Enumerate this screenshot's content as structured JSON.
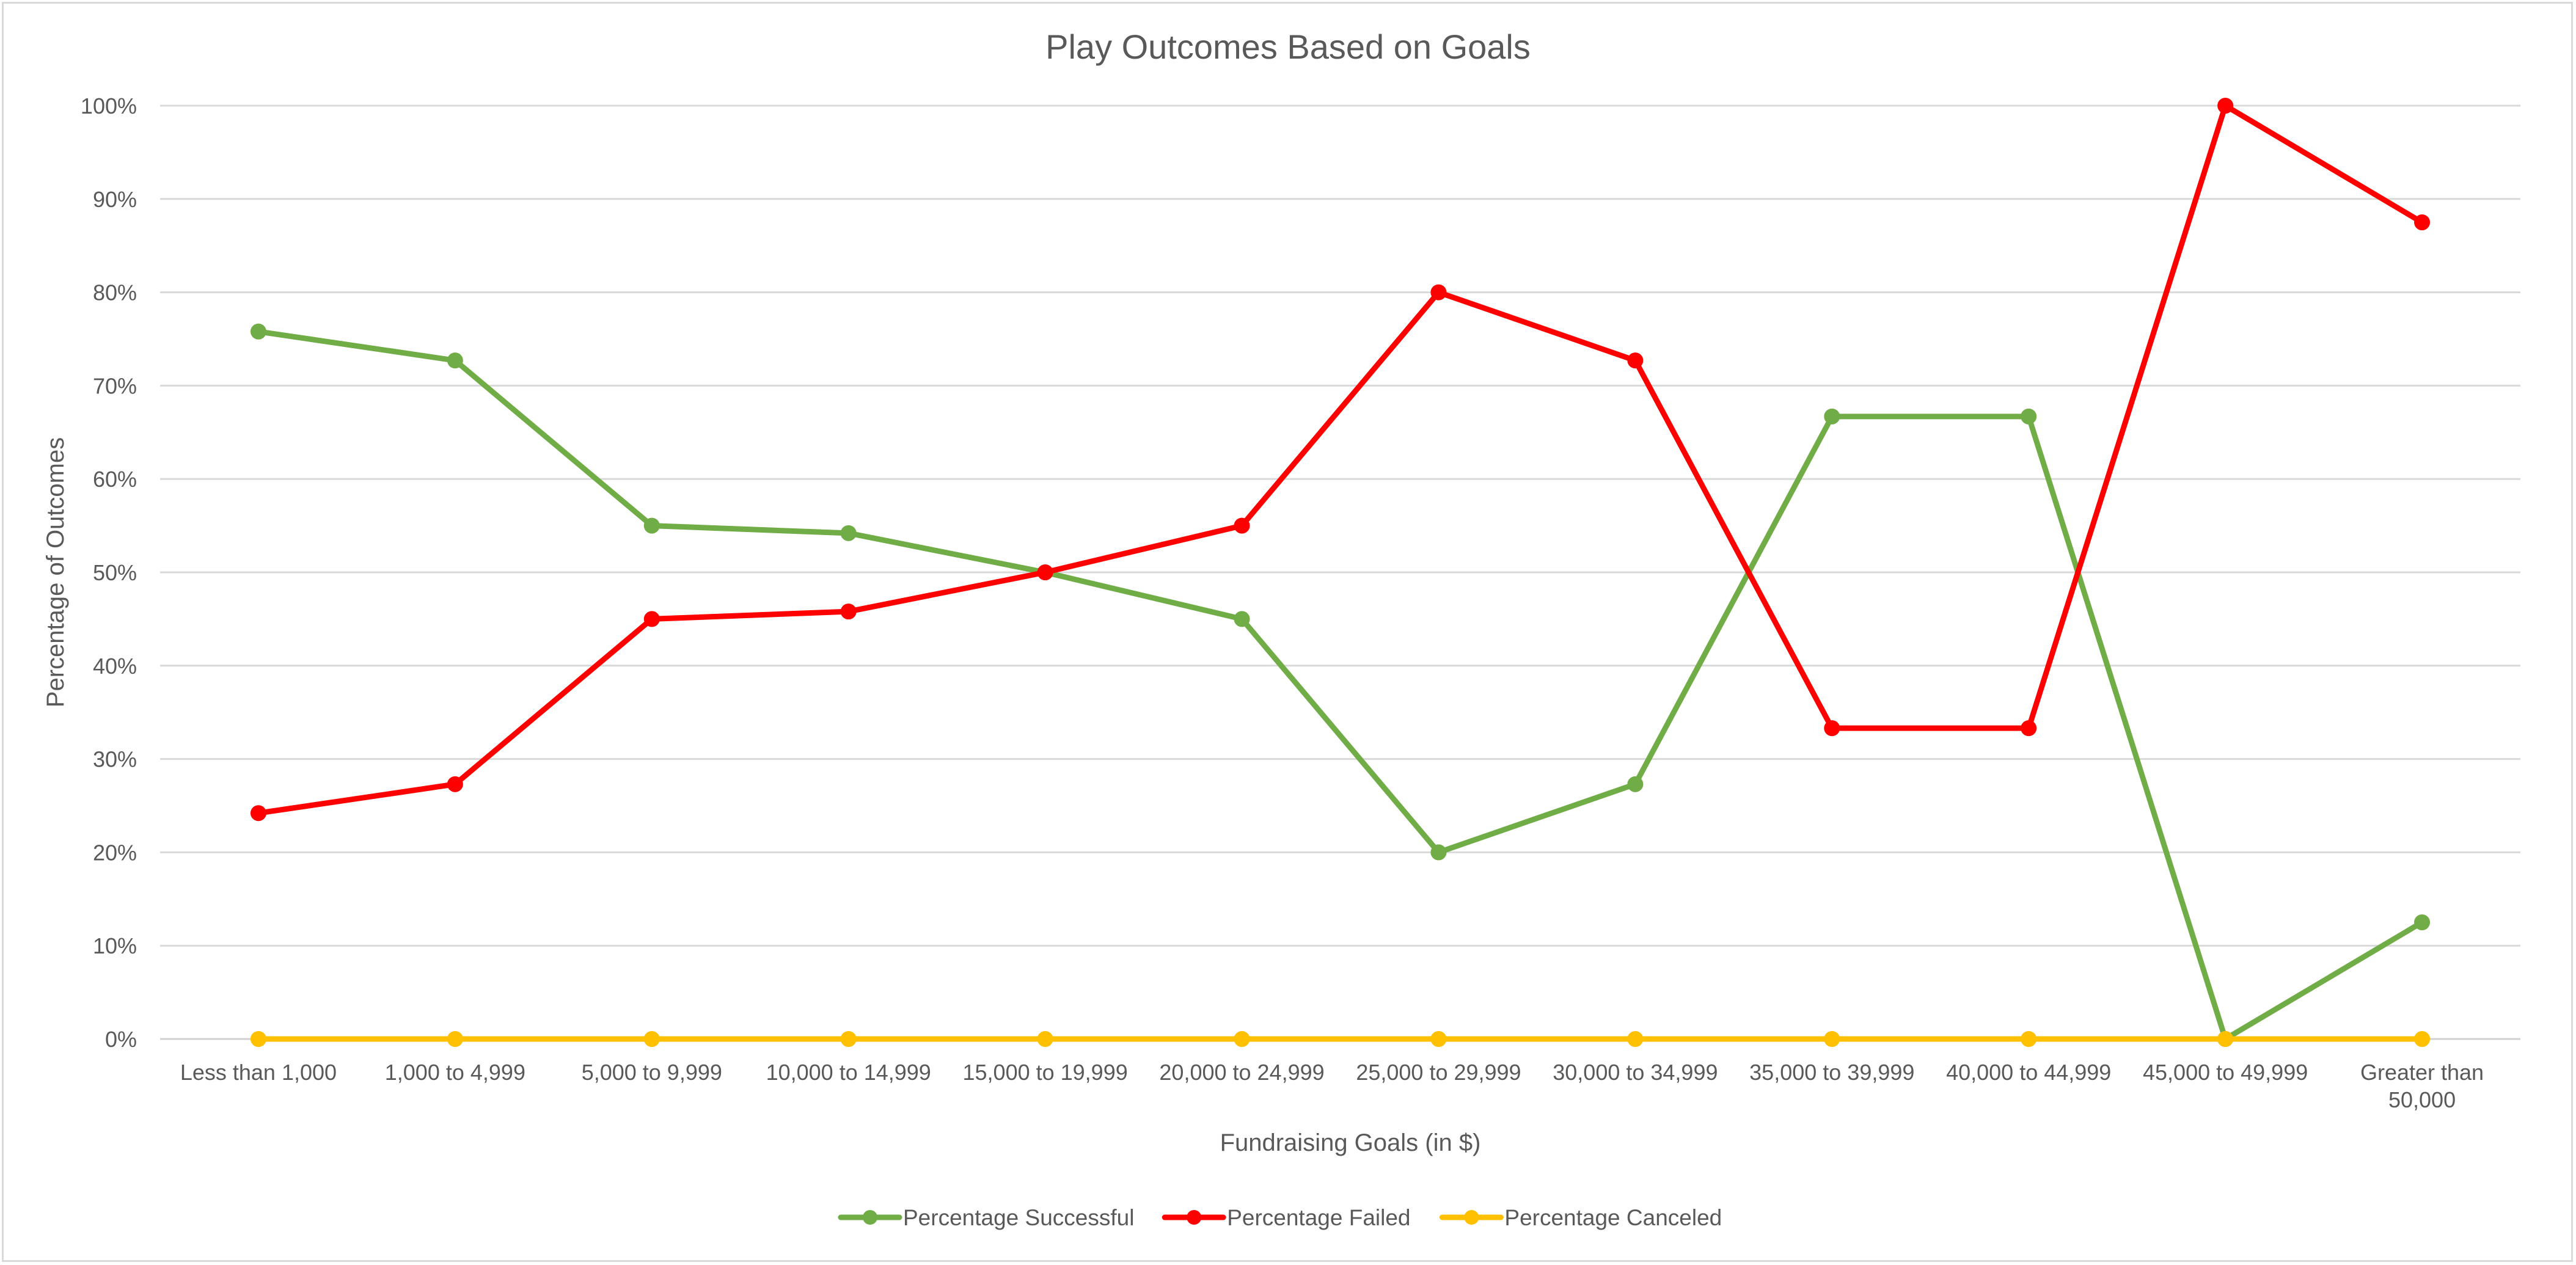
{
  "chart_data": {
    "type": "line",
    "title": "Play Outcomes Based on Goals",
    "xlabel": "Fundraising Goals (in $)",
    "ylabel": "Percentage of Outcomes",
    "ylim": [
      0,
      100
    ],
    "y_ticks": [
      "0%",
      "10%",
      "20%",
      "30%",
      "40%",
      "50%",
      "60%",
      "70%",
      "80%",
      "90%",
      "100%"
    ],
    "y_tick_values": [
      0,
      10,
      20,
      30,
      40,
      50,
      60,
      70,
      80,
      90,
      100
    ],
    "grid": true,
    "legend_position": "bottom",
    "categories": [
      "Less than 1,000",
      "1,000 to 4,999",
      "5,000 to 9,999",
      "10,000 to 14,999",
      "15,000 to 19,999",
      "20,000 to 24,999",
      "25,000 to 29,999",
      "30,000 to 34,999",
      "35,000 to 39,999",
      "40,000 to 44,999",
      "45,000 to 49,999",
      "Greater than 50,000"
    ],
    "series": [
      {
        "name": "Percentage Successful",
        "color": "#70ad47",
        "values": [
          75.8,
          72.7,
          55.0,
          54.2,
          50.0,
          45.0,
          20.0,
          27.3,
          66.7,
          66.7,
          0.0,
          12.5
        ]
      },
      {
        "name": "Percentage Failed",
        "color": "#ff0000",
        "values": [
          24.2,
          27.3,
          45.0,
          45.8,
          50.0,
          55.0,
          80.0,
          72.7,
          33.3,
          33.3,
          100.0,
          87.5
        ]
      },
      {
        "name": "Percentage Canceled",
        "color": "#ffc000",
        "values": [
          0,
          0,
          0,
          0,
          0,
          0,
          0,
          0,
          0,
          0,
          0,
          0
        ]
      }
    ]
  }
}
